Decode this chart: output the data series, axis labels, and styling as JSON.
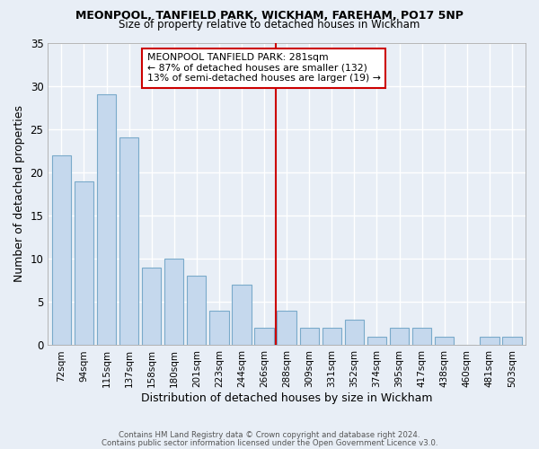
{
  "title1": "MEONPOOL, TANFIELD PARK, WICKHAM, FAREHAM, PO17 5NP",
  "title2": "Size of property relative to detached houses in Wickham",
  "xlabel": "Distribution of detached houses by size in Wickham",
  "ylabel": "Number of detached properties",
  "categories": [
    "72sqm",
    "94sqm",
    "115sqm",
    "137sqm",
    "158sqm",
    "180sqm",
    "201sqm",
    "223sqm",
    "244sqm",
    "266sqm",
    "288sqm",
    "309sqm",
    "331sqm",
    "352sqm",
    "374sqm",
    "395sqm",
    "417sqm",
    "438sqm",
    "460sqm",
    "481sqm",
    "503sqm"
  ],
  "values": [
    22,
    19,
    29,
    24,
    9,
    10,
    8,
    4,
    7,
    2,
    4,
    2,
    2,
    3,
    1,
    2,
    2,
    1,
    0,
    1,
    1
  ],
  "bar_color": "#c5d8ed",
  "bar_edge_color": "#7aaaca",
  "background_color": "#e8eef6",
  "grid_color": "#ffffff",
  "vline_x_index": 9.5,
  "vline_color": "#cc0000",
  "vline_label": "MEONPOOL TANFIELD PARK: 281sqm",
  "annotation_line2": "← 87% of detached houses are smaller (132)",
  "annotation_line3": "13% of semi-detached houses are larger (19) →",
  "box_edge_color": "#cc0000",
  "ylim": [
    0,
    35
  ],
  "yticks": [
    0,
    5,
    10,
    15,
    20,
    25,
    30,
    35
  ],
  "footnote1": "Contains HM Land Registry data © Crown copyright and database right 2024.",
  "footnote2": "Contains public sector information licensed under the Open Government Licence v3.0."
}
